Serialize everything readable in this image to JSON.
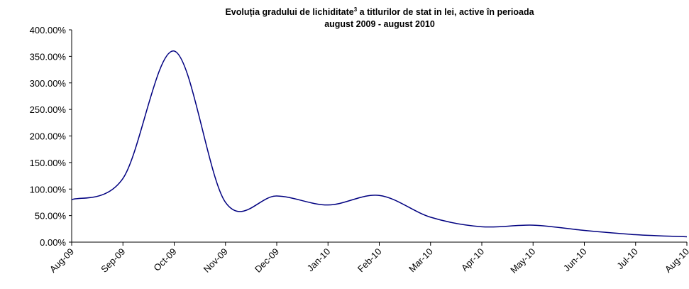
{
  "chart_data": {
    "type": "line",
    "title": [
      "Evoluția gradului de lichiditate",
      "3",
      " a titlurilor de stat in lei, active în perioada",
      "august 2009 -  august 2010"
    ],
    "categories": [
      "Aug-09",
      "Sep-09",
      "Oct-09",
      "Nov-09",
      "Dec-09",
      "Jan-10",
      "Feb-10",
      "Mar-10",
      "Apr-10",
      "May-10",
      "Jun-10",
      "Jul-10",
      "Aug-10"
    ],
    "values": [
      80,
      120,
      360,
      75,
      87,
      70,
      88,
      47,
      29,
      32,
      22,
      14,
      10
    ],
    "color": "#000080",
    "ylim": [
      0,
      400
    ],
    "yticks": [
      {
        "value": 0,
        "label": "0.00%"
      },
      {
        "value": 50,
        "label": "50.00%"
      },
      {
        "value": 100,
        "label": "100.00%"
      },
      {
        "value": 150,
        "label": "150.00%"
      },
      {
        "value": 200,
        "label": "200.00%"
      },
      {
        "value": 250,
        "label": "250.00%"
      },
      {
        "value": 300,
        "label": "300.00%"
      },
      {
        "value": 350,
        "label": "350.00%"
      },
      {
        "value": 400,
        "label": "400.00%"
      }
    ],
    "smooth": true
  }
}
